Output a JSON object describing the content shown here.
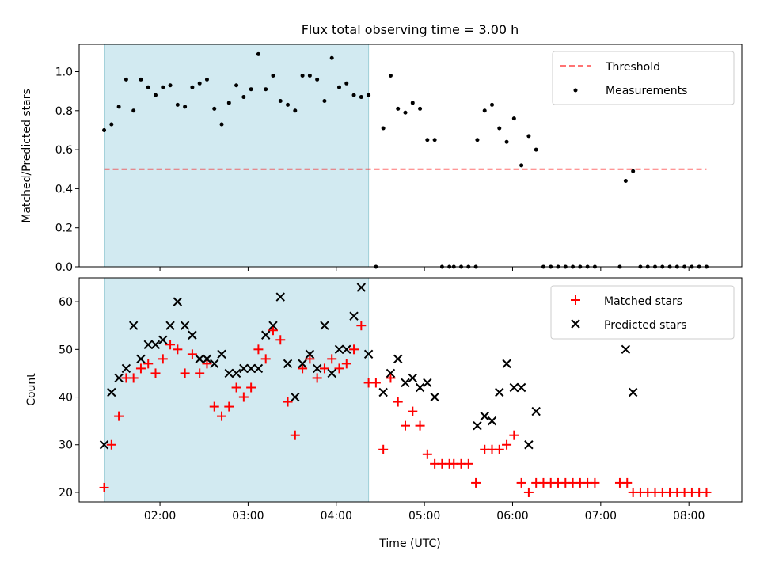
{
  "chart_data": [
    {
      "type": "scatter",
      "title": "Flux total observing time = 3.00 h",
      "xlabel": "",
      "ylabel": "Matched/Predicted stars",
      "xlim": [
        "01:05",
        "08:36"
      ],
      "ylim": [
        0,
        1.14
      ],
      "yticks": [
        0.0,
        0.2,
        0.4,
        0.6,
        0.8,
        1.0
      ],
      "ytick_labels": [
        "0.0",
        "0.2",
        "0.4",
        "0.6",
        "0.8",
        "1.0"
      ],
      "xticks": [
        "02:00",
        "03:00",
        "04:00",
        "05:00",
        "06:00",
        "07:00",
        "08:00"
      ],
      "grid": false,
      "legend": "top-right",
      "shaded_region": {
        "x_start": "01:22",
        "x_end": "04:22",
        "color": "#add8e6"
      },
      "threshold": {
        "name": "Threshold",
        "y": 0.5,
        "x_start": "01:22",
        "x_end": "08:12",
        "color": "#ff0000"
      },
      "series": [
        {
          "name": "Measurements",
          "color": "#000000",
          "marker": "dot",
          "points": [
            [
              "01:22",
              0.7
            ],
            [
              "01:27",
              0.73
            ],
            [
              "01:32",
              0.82
            ],
            [
              "01:37",
              0.96
            ],
            [
              "01:42",
              0.8
            ],
            [
              "01:47",
              0.96
            ],
            [
              "01:52",
              0.92
            ],
            [
              "01:57",
              0.88
            ],
            [
              "02:02",
              0.92
            ],
            [
              "02:07",
              0.93
            ],
            [
              "02:12",
              0.83
            ],
            [
              "02:17",
              0.82
            ],
            [
              "02:22",
              0.92
            ],
            [
              "02:27",
              0.94
            ],
            [
              "02:32",
              0.96
            ],
            [
              "02:37",
              0.81
            ],
            [
              "02:42",
              0.73
            ],
            [
              "02:47",
              0.84
            ],
            [
              "02:52",
              0.93
            ],
            [
              "02:57",
              0.87
            ],
            [
              "03:02",
              0.91
            ],
            [
              "03:07",
              1.09
            ],
            [
              "03:12",
              0.91
            ],
            [
              "03:17",
              0.98
            ],
            [
              "03:22",
              0.85
            ],
            [
              "03:27",
              0.83
            ],
            [
              "03:32",
              0.8
            ],
            [
              "03:37",
              0.98
            ],
            [
              "03:42",
              0.98
            ],
            [
              "03:47",
              0.96
            ],
            [
              "03:52",
              0.85
            ],
            [
              "03:57",
              1.07
            ],
            [
              "04:02",
              0.92
            ],
            [
              "04:07",
              0.94
            ],
            [
              "04:12",
              0.88
            ],
            [
              "04:17",
              0.87
            ],
            [
              "04:22",
              0.88
            ],
            [
              "04:27",
              0.0
            ],
            [
              "04:32",
              0.71
            ],
            [
              "04:37",
              0.98
            ],
            [
              "04:42",
              0.81
            ],
            [
              "04:47",
              0.79
            ],
            [
              "04:52",
              0.84
            ],
            [
              "04:57",
              0.81
            ],
            [
              "05:02",
              0.65
            ],
            [
              "05:07",
              0.65
            ],
            [
              "05:12",
              0.0
            ],
            [
              "05:17",
              0.0
            ],
            [
              "05:20",
              0.0
            ],
            [
              "05:25",
              0.0
            ],
            [
              "05:30",
              0.0
            ],
            [
              "05:35",
              0.0
            ],
            [
              "05:36",
              0.65
            ],
            [
              "05:41",
              0.8
            ],
            [
              "05:46",
              0.83
            ],
            [
              "05:51",
              0.71
            ],
            [
              "05:56",
              0.64
            ],
            [
              "06:01",
              0.76
            ],
            [
              "06:06",
              0.52
            ],
            [
              "06:11",
              0.67
            ],
            [
              "06:16",
              0.6
            ],
            [
              "06:21",
              0.0
            ],
            [
              "06:26",
              0.0
            ],
            [
              "06:31",
              0.0
            ],
            [
              "06:36",
              0.0
            ],
            [
              "06:41",
              0.0
            ],
            [
              "06:46",
              0.0
            ],
            [
              "06:51",
              0.0
            ],
            [
              "06:56",
              0.0
            ],
            [
              "07:13",
              0.0
            ],
            [
              "07:17",
              0.44
            ],
            [
              "07:22",
              0.49
            ],
            [
              "07:27",
              0.0
            ],
            [
              "07:32",
              0.0
            ],
            [
              "07:37",
              0.0
            ],
            [
              "07:42",
              0.0
            ],
            [
              "07:47",
              0.0
            ],
            [
              "07:52",
              0.0
            ],
            [
              "07:57",
              0.0
            ],
            [
              "08:02",
              0.0
            ],
            [
              "08:07",
              0.0
            ],
            [
              "08:12",
              0.0
            ]
          ]
        }
      ]
    },
    {
      "type": "scatter",
      "title": "",
      "xlabel": "Time (UTC)",
      "ylabel": "Count",
      "xlim": [
        "01:05",
        "08:36"
      ],
      "ylim": [
        18,
        65
      ],
      "yticks": [
        20,
        30,
        40,
        50,
        60
      ],
      "ytick_labels": [
        "20",
        "30",
        "40",
        "50",
        "60"
      ],
      "xticks": [
        "02:00",
        "03:00",
        "04:00",
        "05:00",
        "06:00",
        "07:00",
        "08:00"
      ],
      "grid": false,
      "legend": "top-right",
      "shaded_region": {
        "x_start": "01:22",
        "x_end": "04:22",
        "color": "#add8e6"
      },
      "series": [
        {
          "name": "Matched stars",
          "color": "#ff0000",
          "marker": "plus",
          "points": [
            [
              "01:22",
              21
            ],
            [
              "01:27",
              30
            ],
            [
              "01:32",
              36
            ],
            [
              "01:37",
              44
            ],
            [
              "01:42",
              44
            ],
            [
              "01:47",
              46
            ],
            [
              "01:52",
              47
            ],
            [
              "01:57",
              45
            ],
            [
              "02:02",
              48
            ],
            [
              "02:07",
              51
            ],
            [
              "02:12",
              50
            ],
            [
              "02:17",
              45
            ],
            [
              "02:22",
              49
            ],
            [
              "02:27",
              45
            ],
            [
              "02:32",
              47
            ],
            [
              "02:37",
              38
            ],
            [
              "02:42",
              36
            ],
            [
              "02:47",
              38
            ],
            [
              "02:52",
              42
            ],
            [
              "02:57",
              40
            ],
            [
              "03:02",
              42
            ],
            [
              "03:07",
              50
            ],
            [
              "03:12",
              48
            ],
            [
              "03:17",
              54
            ],
            [
              "03:22",
              52
            ],
            [
              "03:27",
              39
            ],
            [
              "03:32",
              32
            ],
            [
              "03:37",
              46
            ],
            [
              "03:42",
              48
            ],
            [
              "03:47",
              44
            ],
            [
              "03:52",
              46
            ],
            [
              "03:57",
              48
            ],
            [
              "04:02",
              46
            ],
            [
              "04:07",
              47
            ],
            [
              "04:12",
              50
            ],
            [
              "04:17",
              55
            ],
            [
              "04:22",
              43
            ],
            [
              "04:27",
              43
            ],
            [
              "04:32",
              29
            ],
            [
              "04:37",
              44
            ],
            [
              "04:42",
              39
            ],
            [
              "04:47",
              34
            ],
            [
              "04:52",
              37
            ],
            [
              "04:57",
              34
            ],
            [
              "05:02",
              28
            ],
            [
              "05:07",
              26
            ],
            [
              "05:12",
              26
            ],
            [
              "05:17",
              26
            ],
            [
              "05:20",
              26
            ],
            [
              "05:25",
              26
            ],
            [
              "05:30",
              26
            ],
            [
              "05:35",
              22
            ],
            [
              "05:41",
              29
            ],
            [
              "05:46",
              29
            ],
            [
              "05:51",
              29
            ],
            [
              "05:56",
              30
            ],
            [
              "06:01",
              32
            ],
            [
              "06:06",
              22
            ],
            [
              "06:11",
              20
            ],
            [
              "06:16",
              22
            ],
            [
              "06:21",
              22
            ],
            [
              "06:26",
              22
            ],
            [
              "06:31",
              22
            ],
            [
              "06:36",
              22
            ],
            [
              "06:41",
              22
            ],
            [
              "06:46",
              22
            ],
            [
              "06:51",
              22
            ],
            [
              "06:56",
              22
            ],
            [
              "07:13",
              22
            ],
            [
              "07:18",
              22
            ],
            [
              "07:22",
              20
            ],
            [
              "07:27",
              20
            ],
            [
              "07:32",
              20
            ],
            [
              "07:37",
              20
            ],
            [
              "07:42",
              20
            ],
            [
              "07:47",
              20
            ],
            [
              "07:52",
              20
            ],
            [
              "07:57",
              20
            ],
            [
              "08:02",
              20
            ],
            [
              "08:07",
              20
            ],
            [
              "08:12",
              20
            ]
          ]
        },
        {
          "name": "Predicted stars",
          "color": "#000000",
          "marker": "x",
          "points": [
            [
              "01:22",
              30
            ],
            [
              "01:27",
              41
            ],
            [
              "01:32",
              44
            ],
            [
              "01:37",
              46
            ],
            [
              "01:42",
              55
            ],
            [
              "01:47",
              48
            ],
            [
              "01:52",
              51
            ],
            [
              "01:57",
              51
            ],
            [
              "02:02",
              52
            ],
            [
              "02:07",
              55
            ],
            [
              "02:12",
              60
            ],
            [
              "02:17",
              55
            ],
            [
              "02:22",
              53
            ],
            [
              "02:27",
              48
            ],
            [
              "02:32",
              48
            ],
            [
              "02:37",
              47
            ],
            [
              "02:42",
              49
            ],
            [
              "02:47",
              45
            ],
            [
              "02:52",
              45
            ],
            [
              "02:57",
              46
            ],
            [
              "03:02",
              46
            ],
            [
              "03:07",
              46
            ],
            [
              "03:12",
              53
            ],
            [
              "03:17",
              55
            ],
            [
              "03:22",
              61
            ],
            [
              "03:27",
              47
            ],
            [
              "03:32",
              40
            ],
            [
              "03:37",
              47
            ],
            [
              "03:42",
              49
            ],
            [
              "03:47",
              46
            ],
            [
              "03:52",
              55
            ],
            [
              "03:57",
              45
            ],
            [
              "04:02",
              50
            ],
            [
              "04:07",
              50
            ],
            [
              "04:12",
              57
            ],
            [
              "04:17",
              63
            ],
            [
              "04:22",
              49
            ],
            [
              "04:32",
              41
            ],
            [
              "04:37",
              45
            ],
            [
              "04:42",
              48
            ],
            [
              "04:47",
              43
            ],
            [
              "04:52",
              44
            ],
            [
              "04:57",
              42
            ],
            [
              "05:02",
              43
            ],
            [
              "05:07",
              40
            ],
            [
              "05:36",
              34
            ],
            [
              "05:41",
              36
            ],
            [
              "05:46",
              35
            ],
            [
              "05:51",
              41
            ],
            [
              "05:56",
              47
            ],
            [
              "06:01",
              42
            ],
            [
              "06:06",
              42
            ],
            [
              "06:11",
              30
            ],
            [
              "06:16",
              37
            ],
            [
              "07:17",
              50
            ],
            [
              "07:22",
              41
            ]
          ]
        }
      ]
    }
  ]
}
